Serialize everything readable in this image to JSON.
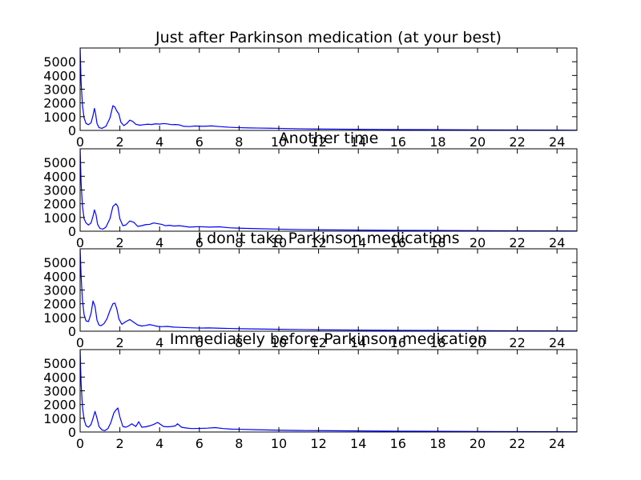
{
  "chart_data": [
    {
      "type": "line",
      "title": "Just after Parkinson medication (at your best)",
      "xlim": [
        0,
        25
      ],
      "ylim": [
        0,
        6000
      ],
      "x_ticks": [
        "0",
        "2",
        "4",
        "6",
        "8",
        "10",
        "12",
        "14",
        "16",
        "18",
        "20",
        "22",
        "24"
      ],
      "y_ticks": [
        "0",
        "1000",
        "2000",
        "3000",
        "4000",
        "5000"
      ],
      "series": [
        {
          "color": "#0000ff",
          "x": [
            0,
            0.05,
            0.12,
            0.2,
            0.3,
            0.42,
            0.55,
            0.65,
            0.72,
            0.78,
            0.85,
            0.95,
            1.1,
            1.3,
            1.5,
            1.65,
            1.75,
            1.85,
            1.95,
            2.05,
            2.2,
            2.35,
            2.5,
            2.65,
            2.8,
            3.0,
            3.2,
            3.4,
            3.6,
            3.8,
            4.0,
            4.2,
            4.4,
            4.6,
            4.8,
            5.0,
            5.2,
            5.5,
            5.8,
            6.2,
            6.6,
            7.0,
            7.5,
            8.0,
            8.5,
            9.0,
            9.5,
            10.0,
            11.0,
            12.0,
            13.0,
            14.0,
            15.0,
            16.0,
            18.0,
            20.0,
            22.0,
            24.0,
            25.0
          ],
          "y": [
            6000,
            3500,
            1800,
            900,
            500,
            420,
            550,
            1100,
            1600,
            1200,
            500,
            200,
            150,
            300,
            900,
            1800,
            1700,
            1400,
            1200,
            600,
            350,
            500,
            750,
            650,
            450,
            380,
            420,
            450,
            430,
            480,
            460,
            500,
            470,
            420,
            430,
            400,
            300,
            280,
            320,
            300,
            330,
            280,
            230,
            200,
            180,
            170,
            160,
            150,
            120,
            100,
            90,
            80,
            70,
            60,
            50,
            40,
            30,
            20,
            15
          ]
        }
      ]
    },
    {
      "type": "line",
      "title": "Another time",
      "xlim": [
        0,
        25
      ],
      "ylim": [
        0,
        6000
      ],
      "x_ticks": [
        "0",
        "2",
        "4",
        "6",
        "8",
        "10",
        "12",
        "14",
        "16",
        "18",
        "20",
        "22",
        "24"
      ],
      "y_ticks": [
        "0",
        "1000",
        "2000",
        "3000",
        "4000",
        "5000"
      ],
      "series": [
        {
          "color": "#0000ff",
          "x": [
            0,
            0.05,
            0.12,
            0.2,
            0.3,
            0.42,
            0.55,
            0.65,
            0.72,
            0.8,
            0.88,
            1.0,
            1.15,
            1.3,
            1.5,
            1.65,
            1.8,
            1.9,
            2.0,
            2.15,
            2.3,
            2.5,
            2.7,
            2.9,
            3.1,
            3.3,
            3.5,
            3.7,
            3.9,
            4.1,
            4.3,
            4.5,
            4.7,
            5.0,
            5.5,
            6.0,
            6.5,
            7.0,
            7.5,
            8.0,
            9.0,
            10.0,
            11.0,
            12.0,
            14.0,
            16.0,
            18.0,
            20.0,
            22.0,
            24.0,
            25.0
          ],
          "y": [
            6000,
            3500,
            1800,
            900,
            600,
            450,
            600,
            1100,
            1550,
            1200,
            500,
            200,
            150,
            300,
            900,
            1800,
            2000,
            1800,
            900,
            400,
            450,
            750,
            650,
            350,
            400,
            480,
            500,
            600,
            550,
            500,
            400,
            430,
            380,
            400,
            300,
            330,
            300,
            320,
            250,
            220,
            180,
            150,
            120,
            100,
            80,
            60,
            50,
            40,
            30,
            20,
            15
          ]
        }
      ]
    },
    {
      "type": "line",
      "title": "I don't take Parkinson medications",
      "xlim": [
        0,
        25
      ],
      "ylim": [
        0,
        6000
      ],
      "x_ticks": [
        "0",
        "2",
        "4",
        "6",
        "8",
        "10",
        "12",
        "14",
        "16",
        "18",
        "20",
        "22",
        "24"
      ],
      "y_ticks": [
        "0",
        "1000",
        "2000",
        "3000",
        "4000",
        "5000"
      ],
      "series": [
        {
          "color": "#0000ff",
          "x": [
            0,
            0.05,
            0.12,
            0.2,
            0.3,
            0.42,
            0.55,
            0.65,
            0.75,
            0.85,
            0.95,
            1.05,
            1.2,
            1.35,
            1.5,
            1.65,
            1.75,
            1.85,
            1.95,
            2.1,
            2.3,
            2.5,
            2.7,
            2.9,
            3.1,
            3.3,
            3.5,
            3.7,
            3.9,
            4.1,
            4.4,
            4.7,
            5.0,
            5.5,
            6.0,
            6.5,
            7.0,
            7.5,
            8.0,
            9.0,
            10.0,
            11.0,
            12.0,
            14.0,
            16.0,
            18.0,
            20.0,
            22.0,
            24.0,
            25.0
          ],
          "y": [
            6000,
            4000,
            2200,
            1200,
            750,
            700,
            1300,
            2200,
            1800,
            800,
            450,
            400,
            550,
            900,
            1500,
            2000,
            2050,
            1600,
            900,
            500,
            700,
            850,
            650,
            450,
            380,
            420,
            480,
            420,
            350,
            330,
            350,
            300,
            280,
            250,
            230,
            240,
            220,
            200,
            180,
            160,
            140,
            120,
            100,
            80,
            60,
            50,
            40,
            30,
            20,
            15
          ]
        }
      ]
    },
    {
      "type": "line",
      "title": "Immediately before Parkinson medication",
      "xlim": [
        0,
        25
      ],
      "ylim": [
        0,
        6000
      ],
      "x_ticks": [
        "0",
        "2",
        "4",
        "6",
        "8",
        "10",
        "12",
        "14",
        "16",
        "18",
        "20",
        "22",
        "24"
      ],
      "y_ticks": [
        "0",
        "1000",
        "2000",
        "3000",
        "4000",
        "5000"
      ],
      "series": [
        {
          "color": "#0000ff",
          "x": [
            0,
            0.05,
            0.12,
            0.2,
            0.3,
            0.42,
            0.55,
            0.65,
            0.75,
            0.85,
            0.95,
            1.1,
            1.25,
            1.4,
            1.55,
            1.7,
            1.8,
            1.9,
            2.0,
            2.15,
            2.3,
            2.45,
            2.6,
            2.8,
            2.95,
            3.1,
            3.3,
            3.5,
            3.7,
            3.9,
            4.0,
            4.2,
            4.4,
            4.6,
            4.8,
            4.9,
            5.1,
            5.3,
            5.6,
            6.0,
            6.4,
            6.8,
            7.2,
            7.6,
            8.0,
            9.0,
            10.0,
            11.0,
            12.0,
            14.0,
            16.0,
            18.0,
            20.0,
            22.0,
            24.0,
            25.0
          ],
          "y": [
            6000,
            3500,
            1800,
            900,
            450,
            350,
            550,
            1000,
            1500,
            1000,
            400,
            150,
            100,
            250,
            700,
            1400,
            1600,
            1750,
            1100,
            400,
            350,
            450,
            600,
            400,
            750,
            350,
            380,
            450,
            550,
            700,
            600,
            400,
            380,
            400,
            450,
            600,
            350,
            300,
            250,
            260,
            280,
            320,
            250,
            210,
            200,
            160,
            130,
            110,
            100,
            80,
            60,
            50,
            40,
            30,
            20,
            15
          ]
        }
      ]
    }
  ]
}
